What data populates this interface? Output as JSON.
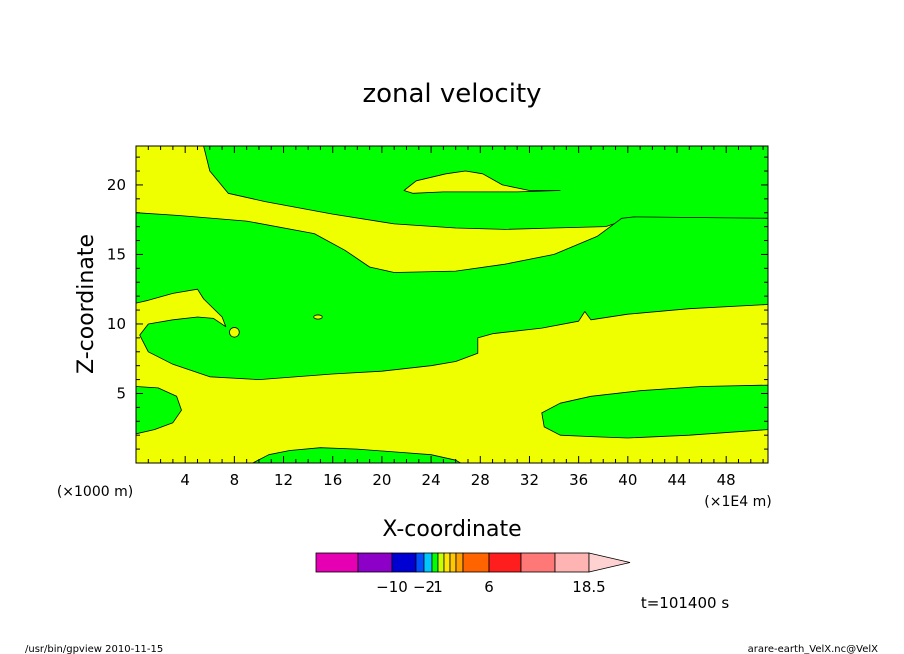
{
  "chart_data": {
    "type": "heatmap",
    "title": "zonal velocity",
    "xlabel": "X-coordinate",
    "ylabel": "Z-coordinate",
    "x_unit_left": "(×1000 m)",
    "x_unit_right": "(×1E4 m)",
    "xlim": [
      0,
      51.4
    ],
    "ylim": [
      0,
      22.8
    ],
    "x_ticks": [
      4,
      8,
      12,
      16,
      20,
      24,
      28,
      32,
      36,
      40,
      44,
      48
    ],
    "y_ticks": [
      5,
      10,
      15,
      20
    ],
    "fill_colors": {
      "background": "#f0ff00",
      "region": "#00ff00"
    },
    "regions": [
      {
        "name": "top-band",
        "points": [
          [
            5.5,
            22.8
          ],
          [
            51.4,
            22.8
          ],
          [
            51.4,
            17.6
          ],
          [
            40.2,
            17.6
          ],
          [
            38.2,
            17.0
          ],
          [
            34,
            16.9
          ],
          [
            30,
            16.8
          ],
          [
            26,
            16.9
          ],
          [
            21,
            17.2
          ],
          [
            16,
            17.9
          ],
          [
            10.5,
            18.8
          ],
          [
            7.5,
            19.4
          ],
          [
            6,
            21.0
          ],
          [
            5.5,
            22.8
          ]
        ]
      },
      {
        "name": "top-band-hole",
        "points": [
          [
            21.8,
            19.6
          ],
          [
            22.8,
            20.3
          ],
          [
            25.2,
            20.8
          ],
          [
            26.8,
            21.0
          ],
          [
            28.2,
            20.8
          ],
          [
            29.8,
            20.0
          ],
          [
            32,
            19.6
          ],
          [
            34.5,
            19.6
          ],
          [
            31,
            19.5
          ],
          [
            25,
            19.5
          ],
          [
            22.5,
            19.4
          ],
          [
            21.8,
            19.6
          ]
        ]
      },
      {
        "name": "middle-band",
        "points": [
          [
            0,
            18.0
          ],
          [
            3.5,
            17.8
          ],
          [
            9,
            17.4
          ],
          [
            14.5,
            16.5
          ],
          [
            17,
            15.3
          ],
          [
            19,
            14.1
          ],
          [
            21,
            13.7
          ],
          [
            26,
            13.8
          ],
          [
            30,
            14.3
          ],
          [
            34,
            15.0
          ],
          [
            37.5,
            16.3
          ],
          [
            39.5,
            17.6
          ],
          [
            40.5,
            17.7
          ],
          [
            51.4,
            17.6
          ],
          [
            51.4,
            11.4
          ],
          [
            45,
            11.1
          ],
          [
            40,
            10.7
          ],
          [
            37,
            10.3
          ],
          [
            36.5,
            10.9
          ],
          [
            36,
            10.2
          ],
          [
            33,
            9.7
          ],
          [
            29,
            9.3
          ],
          [
            27.8,
            9.0
          ],
          [
            27.8,
            7.9
          ],
          [
            26,
            7.3
          ],
          [
            24,
            7.0
          ],
          [
            20,
            6.6
          ],
          [
            16,
            6.4
          ],
          [
            10,
            6.0
          ],
          [
            6,
            6.2
          ],
          [
            3,
            7.1
          ],
          [
            1,
            8.0
          ],
          [
            0.3,
            9.2
          ],
          [
            1.0,
            10.0
          ],
          [
            3.0,
            10.3
          ],
          [
            5.0,
            10.5
          ],
          [
            6.3,
            10.4
          ],
          [
            7.3,
            9.8
          ],
          [
            7.0,
            10.5
          ],
          [
            5.5,
            11.8
          ],
          [
            5,
            12.5
          ],
          [
            3,
            12.2
          ],
          [
            1,
            11.7
          ],
          [
            0,
            11.5
          ]
        ]
      },
      {
        "name": "left-lower-lobe",
        "points": [
          [
            0,
            5.5
          ],
          [
            1.8,
            5.4
          ],
          [
            3.3,
            4.8
          ],
          [
            3.7,
            3.8
          ],
          [
            3.0,
            2.9
          ],
          [
            1.5,
            2.4
          ],
          [
            0,
            2.1
          ]
        ]
      },
      {
        "name": "right-lower-lobe",
        "points": [
          [
            51.4,
            5.6
          ],
          [
            46,
            5.5
          ],
          [
            41,
            5.2
          ],
          [
            37,
            4.8
          ],
          [
            34.5,
            4.3
          ],
          [
            33,
            3.6
          ],
          [
            33.2,
            2.6
          ],
          [
            34.5,
            2.0
          ],
          [
            37,
            1.9
          ],
          [
            40,
            1.8
          ],
          [
            45,
            2.0
          ],
          [
            51.4,
            2.4
          ]
        ]
      },
      {
        "name": "bottom-lobe",
        "points": [
          [
            9.5,
            0
          ],
          [
            10.8,
            0.6
          ],
          [
            12.5,
            0.9
          ],
          [
            15,
            1.1
          ],
          [
            18,
            1.0
          ],
          [
            21,
            0.8
          ],
          [
            24,
            0.6
          ],
          [
            26,
            0.2
          ],
          [
            26.4,
            0
          ]
        ]
      }
    ],
    "small_features": [
      {
        "name": "closed-contour-8",
        "x": 8.0,
        "y": 9.4,
        "rx": 0.4,
        "ry": 0.35,
        "fill": "#f0ff00"
      },
      {
        "name": "closed-contour-15",
        "x": 14.8,
        "y": 10.5,
        "rx": 0.35,
        "ry": 0.15,
        "fill": "#f0ff00"
      }
    ],
    "colorbar": {
      "colors": [
        "#e600b4",
        "#8c00c8",
        "#0000d2",
        "#0050ff",
        "#00c8ff",
        "#00ff00",
        "#c8ff00",
        "#ffe600",
        "#ffc800",
        "#ffa000",
        "#ff6400",
        "#ff1e1e",
        "#ff7878",
        "#ffb4b4",
        "#ffd2d2"
      ],
      "labels": [
        "−10",
        "−2",
        "1",
        "6",
        "18.5"
      ]
    },
    "time_label": "t=101400 s",
    "footer_left": "/usr/bin/gpview   2010-11-15",
    "footer_right": "arare-earth_VelX.nc@VelX"
  }
}
